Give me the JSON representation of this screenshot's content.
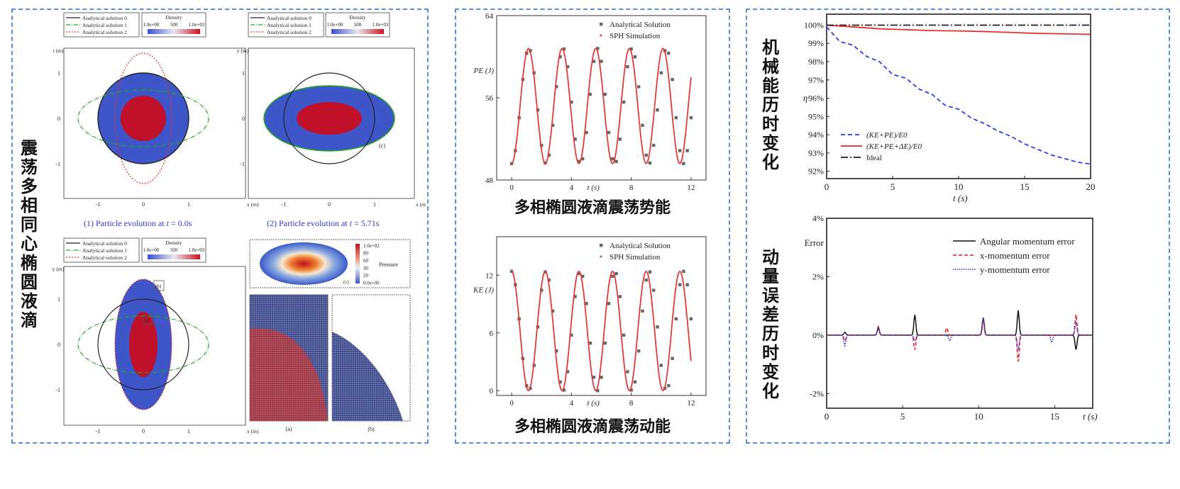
{
  "colors": {
    "panel_border": "#5b8fd6",
    "analytical0": "#222222",
    "analytical1": "#22aa22",
    "analytical2": "#e03333",
    "fluid_outer": "#3f56c8",
    "fluid_inner": "#c0102a",
    "sim_red": "#e23a3a",
    "analytic_gray": "#666666",
    "ke_pe": "#2233ee",
    "ke_pe_de": "#ee2222",
    "ideal": "#222222"
  },
  "left": {
    "title": "震荡多相同心椭圆液滴",
    "legend_items": [
      "Analytical solution 0",
      "Analytical solution 1",
      "Analytical solution 2"
    ],
    "colorbar": {
      "title": "Density",
      "ticks": [
        "1.0e+00",
        "500",
        "1.0e+03"
      ]
    },
    "caption1_parts": [
      "(1) Particle evolution at ",
      "t",
      " = 0.0s"
    ],
    "caption2_parts": [
      "(2) Particle evolution at ",
      "t",
      " = 5.71s"
    ],
    "xticks": [
      "-1",
      "0",
      "1"
    ],
    "yticks": [
      "1",
      "0",
      "-1"
    ],
    "xunit": "x (m)",
    "yunit_a": "t (m)",
    "yunit_b": "y (m)",
    "yunit_c": "y (m)",
    "tag_b": "(b)",
    "tag_a": "(a)",
    "tag_c": "(c)",
    "pressure": {
      "ticks": [
        "1.0e+02",
        "80",
        "60",
        "40",
        "20",
        "0.0e+00"
      ],
      "label": "Pressure",
      "tag": "(c)"
    },
    "zoom_tags": [
      "(a)",
      "(b)"
    ]
  },
  "chart_data": [
    {
      "type": "line",
      "title": "多相椭圆液滴震荡势能",
      "ylabel": "PE (J)",
      "xlabel": "t (s)",
      "xlim": [
        -1,
        13
      ],
      "ylim": [
        48,
        64
      ],
      "xticks": [
        0,
        4,
        8,
        12
      ],
      "yticks": [
        48,
        56,
        64
      ],
      "legend": "top-right",
      "series": [
        {
          "name": "Analytical Solution",
          "marker": "square",
          "period": 2.3,
          "phase": 0.0,
          "offset": 55.2,
          "amplitude": 5.6,
          "t_end": 12.0
        },
        {
          "name": "SPH Simulation",
          "marker": "line",
          "period": 2.25,
          "phase": 0.0,
          "offset": 55.2,
          "amplitude": 5.6,
          "t_end": 12.0
        }
      ]
    },
    {
      "type": "line",
      "title": "多相椭圆液滴震荡动能",
      "ylabel": "KE (J)",
      "xlabel": "t (s)",
      "xlim": [
        -1,
        13
      ],
      "ylim": [
        -0.5,
        16
      ],
      "xticks": [
        0,
        4,
        8,
        12
      ],
      "yticks": [
        0,
        6,
        12
      ],
      "legend": "top-right",
      "series": [
        {
          "name": "Analytical Solution",
          "marker": "square",
          "period": 2.3,
          "offset": 6.2,
          "amplitude": 6.2,
          "t_end": 12.0
        },
        {
          "name": "SPH Simulation",
          "marker": "line",
          "period": 2.25,
          "offset": 6.2,
          "amplitude": 6.2,
          "t_end": 12.0
        }
      ]
    },
    {
      "type": "line",
      "title": "机械能历时变化",
      "ylabel": "η",
      "xlabel": "t (s)",
      "xlim": [
        0,
        20
      ],
      "ylim": [
        91.6,
        100.6
      ],
      "xticks": [
        0,
        5,
        10,
        15,
        20
      ],
      "ytick_labels": [
        "92%",
        "93%",
        "94%",
        "95%",
        "96%",
        "97%",
        "98%",
        "99%",
        "100%"
      ],
      "yticks": [
        92,
        93,
        94,
        95,
        96,
        97,
        98,
        99,
        100
      ],
      "legend": "bottom-left",
      "series": [
        {
          "name": "(KE+PE)/E0",
          "style": "dashed",
          "x": [
            0,
            1,
            2,
            3,
            4,
            5,
            6,
            7,
            8,
            9,
            10,
            11,
            12,
            13,
            14,
            15,
            16,
            17,
            18,
            19,
            20
          ],
          "y": [
            99.9,
            99.1,
            98.9,
            98.3,
            98.0,
            97.3,
            97.1,
            96.5,
            96.2,
            95.6,
            95.4,
            94.9,
            94.6,
            94.2,
            93.9,
            93.5,
            93.2,
            92.9,
            92.7,
            92.5,
            92.4
          ]
        },
        {
          "name": "(KE+PE+ΔE)/E0",
          "style": "solid",
          "x": [
            0,
            2,
            4,
            6,
            8,
            10,
            12,
            14,
            16,
            18,
            20
          ],
          "y": [
            100.0,
            99.9,
            99.8,
            99.75,
            99.7,
            99.68,
            99.65,
            99.6,
            99.55,
            99.52,
            99.5
          ]
        },
        {
          "name": "Ideal",
          "style": "dashdot",
          "x": [
            0,
            20
          ],
          "y": [
            100.0,
            100.0
          ]
        }
      ]
    },
    {
      "type": "line",
      "title": "动量误差历时变化",
      "ylabel": "Error",
      "xlabel": "t (s)",
      "xlim": [
        0,
        17.5
      ],
      "ylim": [
        -2.5,
        4
      ],
      "xticks": [
        0,
        5,
        10,
        15
      ],
      "ytick_labels": [
        "-2%",
        "0%",
        "2%",
        "4%"
      ],
      "yticks": [
        -2,
        0,
        2,
        4
      ],
      "legend": "top-right",
      "series": [
        {
          "name": "Angular momentum error",
          "style": "solid",
          "spikes": [
            [
              1.2,
              0.1
            ],
            [
              3.4,
              0.25
            ],
            [
              5.8,
              0.7
            ],
            [
              10.3,
              0.6
            ],
            [
              12.6,
              0.85
            ],
            [
              16.4,
              -0.5
            ]
          ]
        },
        {
          "name": "x-momentum error",
          "style": "dashed",
          "spikes": [
            [
              1.2,
              -0.2
            ],
            [
              3.4,
              0.3
            ],
            [
              5.8,
              -0.5
            ],
            [
              7.9,
              0.25
            ],
            [
              10.3,
              0.55
            ],
            [
              12.6,
              -0.9
            ],
            [
              16.4,
              0.7
            ]
          ]
        },
        {
          "name": "y-momentum error",
          "style": "dotted",
          "spikes": [
            [
              1.2,
              -0.35
            ],
            [
              3.4,
              0.3
            ],
            [
              5.8,
              -0.2
            ],
            [
              8.1,
              -0.2
            ],
            [
              10.3,
              0.6
            ],
            [
              12.6,
              -0.5
            ],
            [
              14.8,
              -0.25
            ],
            [
              16.4,
              0.45
            ]
          ]
        }
      ]
    }
  ]
}
